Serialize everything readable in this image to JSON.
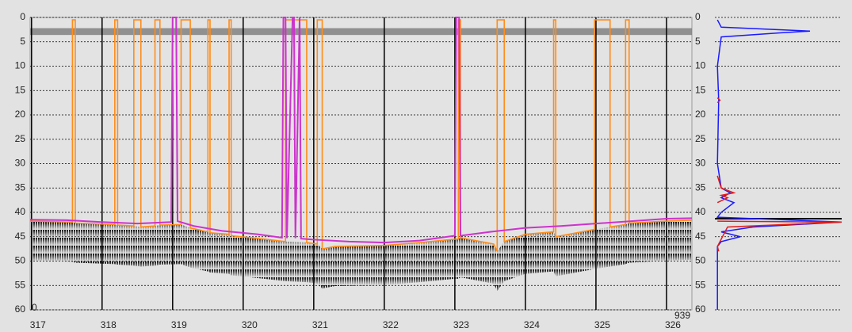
{
  "chart_data": [
    {
      "type": "echogram",
      "xlim": [
        316.98,
        326.36
      ],
      "xticks": [
        317,
        318,
        319,
        320,
        321,
        322,
        323,
        324,
        325,
        326
      ],
      "ylim": [
        0,
        60
      ],
      "yticks": [
        0,
        5,
        10,
        15,
        20,
        25,
        30,
        35,
        40,
        45,
        50,
        55,
        60
      ],
      "ping_labels": [
        0,
        939
      ],
      "surface_band": [
        2.2,
        3.6
      ],
      "series": [
        {
          "color": "#ff8c1a",
          "x": [
            316.98,
            317.58,
            317.58,
            317.62,
            317.62,
            318.18,
            318.18,
            318.22,
            318.22,
            318.45,
            318.45,
            318.55,
            318.55,
            318.75,
            318.75,
            318.82,
            318.82,
            319.12,
            319.12,
            319.25,
            319.25,
            319.5,
            319.5,
            319.53,
            319.53,
            319.8,
            319.8,
            319.83,
            319.83,
            320.3,
            320.6,
            320.6,
            320.9,
            320.9,
            321.05,
            321.05,
            321.12,
            321.12,
            321.3,
            322.0,
            322.5,
            323.0,
            323.05,
            323.05,
            323.08,
            323.08,
            323.55,
            323.6,
            323.6,
            323.7,
            323.7,
            324.0,
            324.4,
            324.4,
            324.43,
            324.43,
            324.98,
            324.98,
            325.2,
            325.2,
            325.42,
            325.42,
            325.47,
            325.47,
            326.0,
            326.36
          ],
          "values": [
            41.8,
            42,
            0.5,
            0.5,
            42.2,
            42.5,
            0.5,
            0.5,
            42.6,
            42.8,
            0.5,
            0.5,
            43,
            42.8,
            0.5,
            0.5,
            42.6,
            42.5,
            0.5,
            0.5,
            43.2,
            44,
            0.5,
            0.5,
            44.2,
            44.5,
            0.5,
            0.5,
            44.8,
            45.5,
            46,
            0.5,
            0.5,
            46.2,
            46.5,
            0.5,
            0.5,
            47.5,
            47,
            46.8,
            46.2,
            45.5,
            45.5,
            0.5,
            0.5,
            45.2,
            46.5,
            48,
            0.5,
            0.5,
            46,
            44.5,
            44,
            0.5,
            0.5,
            45,
            43.5,
            0.5,
            0.5,
            43,
            42.5,
            0.5,
            0.5,
            42.2,
            41.8,
            41.6
          ]
        },
        {
          "color": "#cc33cc",
          "x": [
            316.98,
            317.5,
            318.0,
            318.5,
            318.98,
            319.0,
            319.05,
            319.07,
            319.3,
            319.7,
            320.2,
            320.55,
            320.57,
            320.6,
            320.62,
            320.7,
            320.72,
            320.74,
            320.8,
            320.82,
            321.0,
            321.5,
            322.0,
            322.5,
            323.0,
            323.02,
            323.06,
            323.08,
            323.5,
            324.0,
            324.5,
            325.0,
            325.5,
            326.0,
            326.36
          ],
          "values": [
            41.5,
            41.6,
            42.0,
            42.3,
            42,
            0,
            0,
            41.8,
            42.8,
            43.8,
            44.5,
            45.2,
            0,
            0,
            45.3,
            0,
            0,
            45.3,
            0,
            45.4,
            45.6,
            46,
            46.2,
            45.8,
            44.8,
            0,
            0,
            44.8,
            44,
            43.2,
            42.8,
            42.3,
            41.8,
            41.3,
            41.2
          ]
        }
      ]
    },
    {
      "type": "profile",
      "xlim": [
        0,
        1
      ],
      "ylim": [
        0,
        60
      ],
      "yticks": [
        0,
        5,
        10,
        15,
        20,
        25,
        30,
        35,
        40,
        45,
        50,
        55,
        60
      ],
      "hline": 41.3,
      "series": [
        {
          "color": "#1a1aff",
          "y": [
            0.5,
            2,
            2.8,
            3.2,
            4,
            10,
            17,
            30,
            35,
            36,
            37,
            38,
            40,
            41,
            42,
            43,
            44,
            45,
            46,
            47,
            60
          ],
          "values": [
            0.02,
            0.05,
            0.75,
            0.5,
            0.05,
            0.02,
            0.03,
            0.02,
            0.05,
            0.12,
            0.05,
            0.15,
            0.05,
            0.02,
            1.0,
            0.3,
            0.05,
            0.2,
            0.05,
            0.02,
            0.02
          ]
        },
        {
          "color": "#e01a1a",
          "y": [
            16.5,
            17,
            17.5,
            null,
            32.5,
            35,
            36,
            36.5,
            37,
            38,
            null,
            41.8,
            42,
            43,
            47,
            48
          ],
          "values": [
            0.02,
            0.04,
            0.02,
            null,
            0.02,
            0.05,
            0.15,
            0.05,
            0.1,
            0.02,
            null,
            0.02,
            1.0,
            0.1,
            0.02,
            0.03
          ]
        }
      ]
    }
  ]
}
